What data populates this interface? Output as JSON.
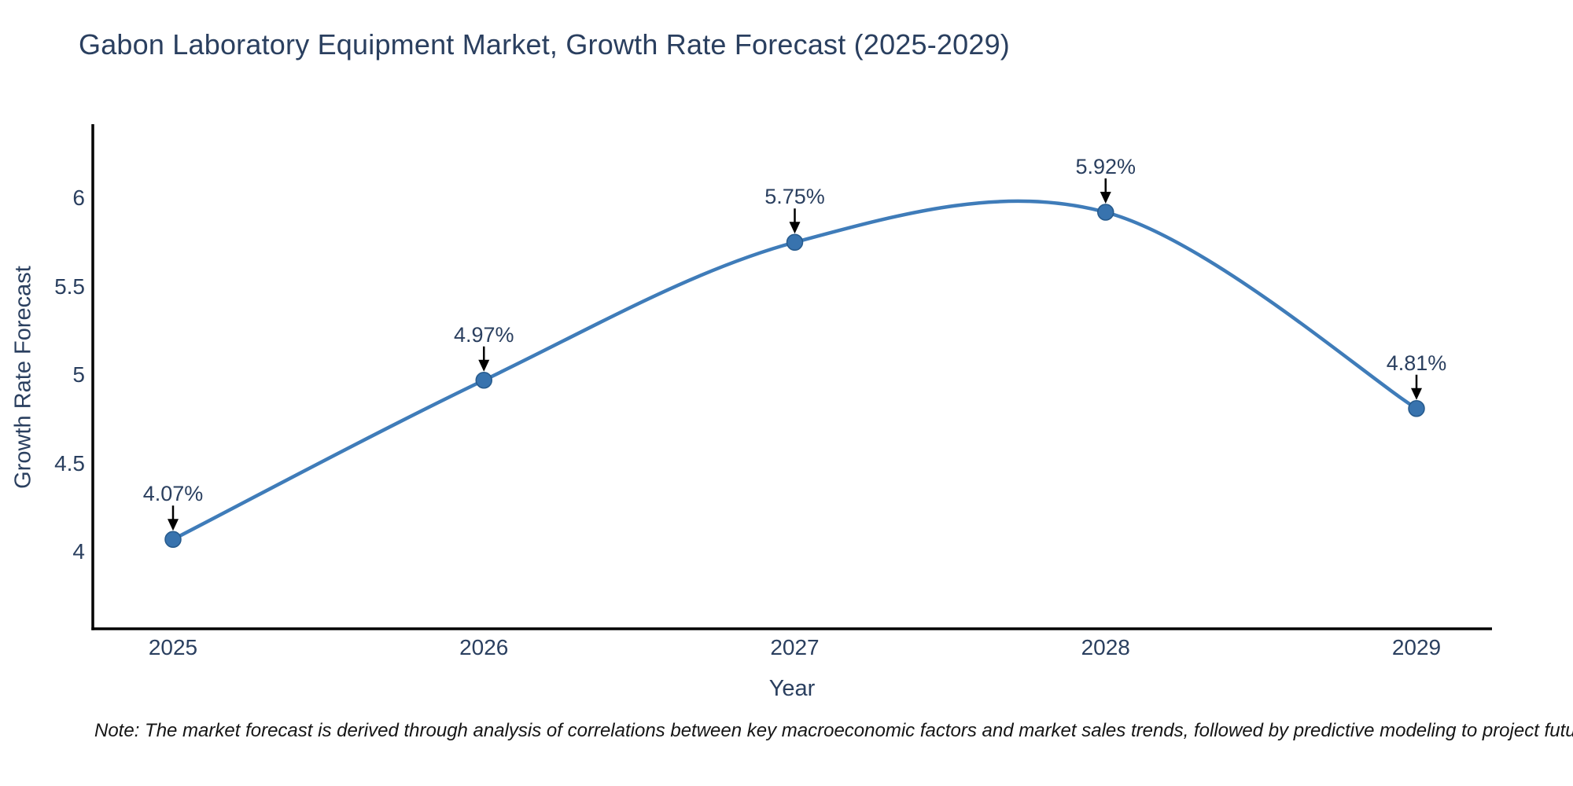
{
  "title": "Gabon Laboratory Equipment Market, Growth Rate Forecast (2025-2029)",
  "note": "Note: The market forecast is derived through analysis of correlations between key macroeconomic factors and market sales trends, followed by predictive modeling to project future sales",
  "chart_data": {
    "type": "line",
    "line_shape": "spline",
    "title": "Gabon Laboratory Equipment Market, Growth Rate Forecast (2025-2029)",
    "xlabel": "Year",
    "ylabel": "Growth Rate Forecast",
    "categories": [
      "2025",
      "2026",
      "2027",
      "2028",
      "2029"
    ],
    "series": [
      {
        "name": "Growth Rate Forecast",
        "values": [
          4.07,
          4.97,
          5.75,
          5.92,
          4.81
        ]
      }
    ],
    "point_labels": [
      "4.07%",
      "4.97%",
      "5.75%",
      "5.92%",
      "4.81%"
    ],
    "ytick_values": [
      4,
      4.5,
      5,
      5.5,
      6
    ],
    "ytick_labels": [
      "4",
      "4.5",
      "5",
      "5.5",
      "6"
    ],
    "ylim": [
      3.56,
      6.41
    ],
    "grid": false,
    "legend": "none",
    "annotations_style": "value label with downward arrow to marker",
    "colors": {
      "line": "#3f7cb9",
      "marker_fill": "#3873ae",
      "marker_border": "#265a8c",
      "arrow": "#000000",
      "axis_line": "#000000",
      "text": "#2a3f5f",
      "note_text": "#151515",
      "background": "#ffffff"
    }
  }
}
